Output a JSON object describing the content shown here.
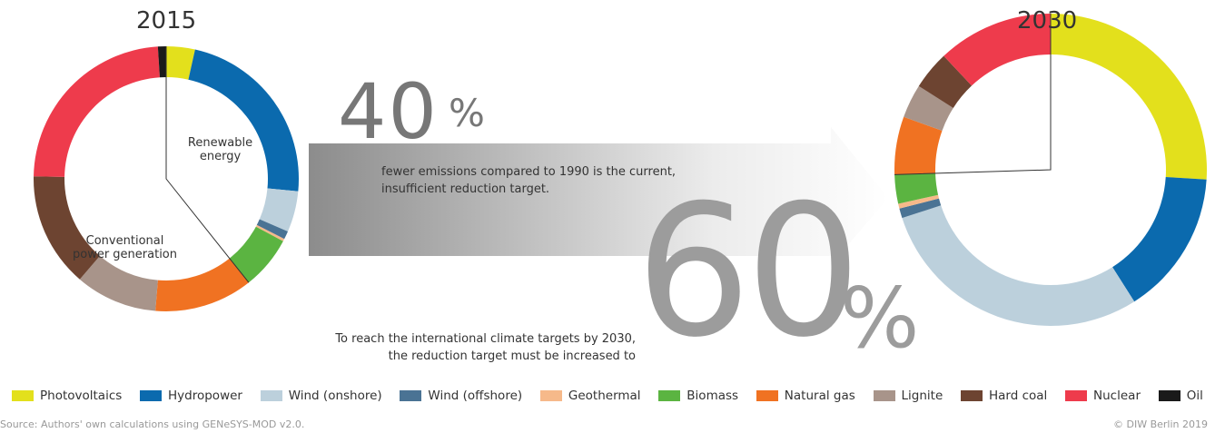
{
  "chart_data": [
    {
      "type": "donut",
      "title": "2015",
      "categories": [
        "Photovoltaics",
        "Hydropower",
        "Wind (onshore)",
        "Wind (offshore)",
        "Geothermal",
        "Biomass",
        "Natural gas",
        "Lignite",
        "Hard coal",
        "Nuclear",
        "Oil"
      ],
      "colors": [
        "#e3e01c",
        "#0b6aae",
        "#bcd0dc",
        "#4a7394",
        "#f6b98a",
        "#5bb441",
        "#f07222",
        "#a8948a",
        "#6d4431",
        "#ee3b4c",
        "#1a1a1a"
      ],
      "values": [
        3.5,
        23,
        5,
        1,
        0.3,
        6.5,
        12,
        10,
        14,
        23.7,
        1
      ],
      "annotations": [
        "Renewable energy",
        "Conventional power generation"
      ]
    },
    {
      "type": "donut",
      "title": "2030",
      "categories": [
        "Photovoltaics",
        "Hydropower",
        "Wind (onshore)",
        "Wind (offshore)",
        "Geothermal",
        "Biomass",
        "Natural gas",
        "Lignite",
        "Hard coal",
        "Nuclear",
        "Oil"
      ],
      "colors": [
        "#e3e01c",
        "#0b6aae",
        "#bcd0dc",
        "#4a7394",
        "#f6b98a",
        "#5bb441",
        "#f07222",
        "#a8948a",
        "#6d4431",
        "#ee3b4c",
        "#1a1a1a"
      ],
      "values": [
        26,
        15,
        29,
        1,
        0.5,
        3,
        6,
        3.5,
        4,
        12,
        0
      ]
    }
  ],
  "callouts": [
    {
      "figure": "40",
      "unit": "%",
      "text": "fewer emissions compared to 1990 is the current, insufficient reduction target."
    },
    {
      "figure": "60",
      "unit": "%",
      "text": "To reach the international climate targets by 2030, the reduction target must be increased to"
    }
  ],
  "footer": {
    "source": "Source: Authors' own calculations using GENeSYS-MOD v2.0.",
    "copyright": "© DIW Berlin 2019"
  }
}
